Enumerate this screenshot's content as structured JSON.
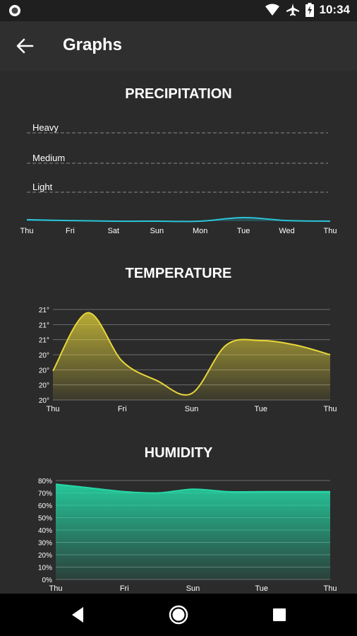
{
  "status_bar": {
    "time": "10:34",
    "icons": [
      "record-icon",
      "wifi-icon",
      "airplane-icon",
      "battery-charging-icon"
    ]
  },
  "app_bar": {
    "title": "Graphs",
    "back_icon": "arrow-left-icon"
  },
  "colors": {
    "background": "#2b2b2b",
    "precipitation": "#2bc4d8",
    "temperature": "#e8d63a",
    "humidity": "#25d8a6",
    "grid": "#777777"
  },
  "navigation_bar": {
    "icons": [
      "back-triangle-icon",
      "home-circle-icon",
      "recents-square-icon"
    ]
  },
  "chart_data": [
    {
      "type": "line",
      "title": "PRECIPITATION",
      "categories": [
        "Thu",
        "Fri",
        "Sat",
        "Sun",
        "Mon",
        "Tue",
        "Wed",
        "Thu"
      ],
      "levels": [
        "Heavy",
        "Medium",
        "Light"
      ],
      "values": [
        0.05,
        0.02,
        0.0,
        0.0,
        0.0,
        0.12,
        0.02,
        0.0
      ],
      "ylim": [
        0,
        3
      ],
      "grid": true,
      "color": "#2bc4d8"
    },
    {
      "type": "area",
      "title": "TEMPERATURE",
      "categories": [
        "Thu",
        "Fri",
        "Sun",
        "Tue",
        "Thu"
      ],
      "y_ticks": [
        "21°",
        "21°",
        "21°",
        "20°",
        "20°",
        "20°",
        "20°"
      ],
      "x": [
        0,
        0.5,
        1,
        1.5,
        2,
        2.5,
        3,
        3.5,
        4
      ],
      "values": [
        20.25,
        21.15,
        20.4,
        20.1,
        19.9,
        20.65,
        20.72,
        20.65,
        20.5
      ],
      "ylim": [
        19.8,
        21.2
      ],
      "grid": true,
      "color": "#e8d63a"
    },
    {
      "type": "area",
      "title": "HUMIDITY",
      "categories": [
        "Thu",
        "Fri",
        "Sun",
        "Tue",
        "Thu"
      ],
      "y_ticks": [
        "80%",
        "70%",
        "60%",
        "50%",
        "40%",
        "30%",
        "20%",
        "10%",
        "0%"
      ],
      "x": [
        0,
        0.5,
        1,
        1.5,
        2,
        2.5,
        3,
        3.5,
        4
      ],
      "values": [
        77,
        74,
        71,
        70,
        73,
        71,
        71,
        71,
        71
      ],
      "ylim": [
        0,
        80
      ],
      "grid": true,
      "color": "#25d8a6"
    }
  ]
}
